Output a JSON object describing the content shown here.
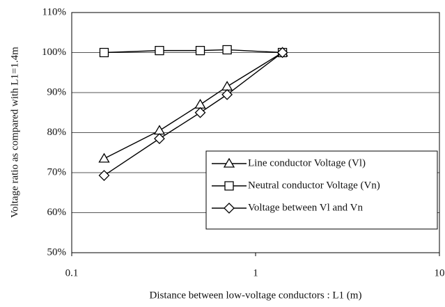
{
  "chart_data": {
    "type": "line",
    "x_label": "Distance between low-voltage conductors : L1 (m)",
    "y_label": "Voltage ratio as compared with L1=1.4m",
    "x": [
      0.15,
      0.3,
      0.5,
      0.7,
      1.4
    ],
    "series": [
      {
        "name": "Line conductor Voltage (Vl)",
        "color": "#000000",
        "marker": "triangle",
        "values": [
          73.5,
          80.5,
          87,
          91.5,
          100
        ]
      },
      {
        "name": "Neutral conductor Voltage (Vn)",
        "color": "#000000",
        "marker": "square",
        "values": [
          100,
          100.5,
          100.5,
          100.7,
          100
        ]
      },
      {
        "name": "Voltage between Vl and Vn",
        "color": "#000000",
        "marker": "diamond",
        "values": [
          69.3,
          78.5,
          85,
          89.5,
          100
        ]
      }
    ],
    "xlim": [
      0.1,
      10
    ],
    "xticks": [
      0.1,
      1,
      10
    ],
    "x_log": true,
    "ylim": [
      50,
      110
    ],
    "yticks": [
      {
        "value": 50,
        "label": "50%"
      },
      {
        "value": 60,
        "label": "60%"
      },
      {
        "value": 70,
        "label": "70%"
      },
      {
        "value": 80,
        "label": "80%"
      },
      {
        "value": 90,
        "label": "90%"
      },
      {
        "value": 100,
        "label": "100%"
      },
      {
        "value": 110,
        "label": "110%"
      }
    ],
    "grid": true,
    "legend": "right"
  }
}
